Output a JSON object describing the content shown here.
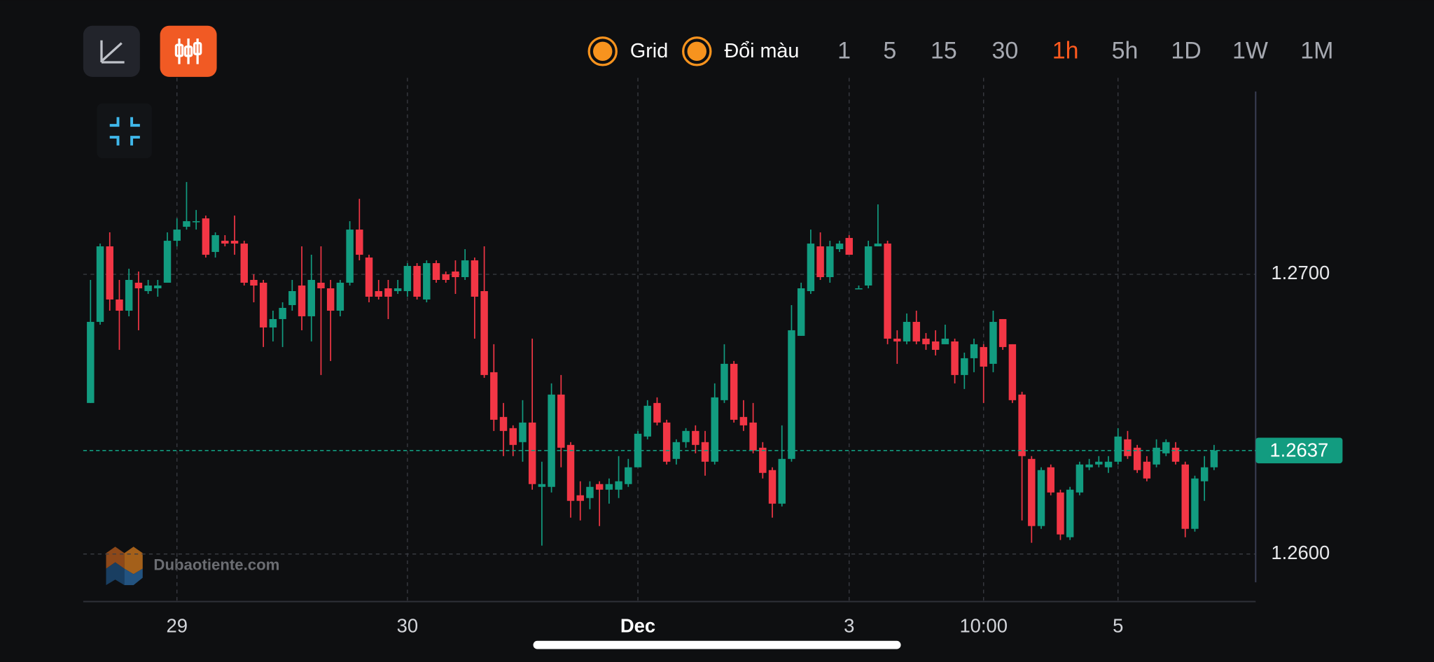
{
  "chart_data": {
    "type": "candlestick",
    "categories": [
      null,
      null,
      null,
      null,
      null,
      null,
      null,
      null,
      null,
      "29",
      null,
      null,
      null,
      null,
      null,
      null,
      null,
      null,
      null,
      null,
      null,
      null,
      null,
      null,
      null,
      null,
      null,
      null,
      null,
      null,
      null,
      null,
      null,
      "30",
      null,
      null,
      null,
      null,
      null,
      null,
      null,
      null,
      null,
      null,
      null,
      null,
      null,
      null,
      null,
      null,
      null,
      null,
      null,
      null,
      null,
      null,
      null,
      "Dec",
      null,
      null,
      null,
      null,
      null,
      null,
      null,
      null,
      null,
      null,
      null,
      null,
      null,
      null,
      null,
      null,
      null,
      null,
      null,
      null,
      null,
      "3",
      null,
      null,
      null,
      null,
      null,
      null,
      null,
      null,
      null,
      null,
      null,
      null,
      null,
      "10:00",
      null,
      null,
      null,
      null,
      null,
      null,
      null,
      null,
      null,
      null,
      null,
      null,
      null,
      "5",
      null,
      null,
      null,
      null,
      null,
      null,
      null,
      null,
      null,
      null
    ],
    "open": [
      1.2654,
      1.2683,
      1.271,
      1.2691,
      1.2687,
      1.2697,
      1.2694,
      1.2695,
      1.2697,
      1.2712,
      1.2717,
      1.2719,
      1.272,
      1.2708,
      1.2712,
      1.2712,
      1.2711,
      1.2698,
      1.2697,
      1.2681,
      1.2684,
      1.2689,
      1.2696,
      1.2685,
      1.2697,
      1.2695,
      1.2687,
      1.2697,
      1.2716,
      1.2706,
      1.2694,
      1.2695,
      1.2694,
      1.2694,
      1.2703,
      1.2691,
      1.2704,
      1.27,
      1.2701,
      1.2699,
      1.2705,
      1.2694,
      1.2665,
      1.2649,
      1.2645,
      1.264,
      1.2647,
      1.2624,
      1.2624,
      1.2657,
      1.2639,
      1.2621,
      1.262,
      1.2625,
      1.2623,
      1.2623,
      1.2625,
      1.2631,
      1.2642,
      1.2654,
      1.2647,
      1.2634,
      1.264,
      1.2644,
      1.264,
      1.2633,
      1.2655,
      1.2668,
      1.2649,
      1.2647,
      1.2638,
      1.263,
      1.2618,
      1.2634,
      1.2678,
      1.2694,
      1.271,
      1.2699,
      1.2709,
      1.2713,
      1.2695,
      1.2696,
      1.271,
      1.2711,
      1.2677,
      1.2676,
      1.2683,
      1.2677,
      1.2676,
      1.2675,
      1.2676,
      1.2664,
      1.267,
      1.2674,
      1.2668,
      1.2684,
      1.2675,
      1.2657,
      1.2634,
      1.261,
      1.2631,
      1.2622,
      1.2606,
      1.2622,
      1.2631,
      1.2632,
      1.2631,
      1.2633,
      1.2641,
      1.2638,
      1.2633,
      1.2632,
      1.2636,
      1.2638,
      1.2632,
      1.2609,
      1.2626,
      1.2631
    ],
    "high": [
      1.2698,
      1.2711,
      1.2715,
      1.2698,
      1.2702,
      1.2701,
      1.2698,
      1.2698,
      1.2715,
      1.272,
      1.2733,
      1.2723,
      1.2721,
      1.2715,
      1.2714,
      1.2721,
      1.2712,
      1.27,
      1.2698,
      1.2687,
      1.269,
      1.2698,
      1.271,
      1.2707,
      1.271,
      1.2698,
      1.2698,
      1.2719,
      1.2727,
      1.2707,
      1.2698,
      1.2698,
      1.2698,
      1.2704,
      1.2704,
      1.2705,
      1.2705,
      1.2701,
      1.2705,
      1.2709,
      1.2706,
      1.271,
      1.2675,
      1.2654,
      1.2646,
      1.2655,
      1.2677,
      1.2633,
      1.2661,
      1.2664,
      1.264,
      1.2626,
      1.2626,
      1.2626,
      1.2627,
      1.2635,
      1.2634,
      1.2644,
      1.2655,
      1.2656,
      1.2648,
      1.2641,
      1.2645,
      1.2646,
      1.2644,
      1.2661,
      1.2675,
      1.2669,
      1.2655,
      1.2654,
      1.264,
      1.2631,
      1.2646,
      1.2689,
      1.2697,
      1.2716,
      1.2715,
      1.2712,
      1.2712,
      1.2714,
      1.2696,
      1.2712,
      1.2725,
      1.2712,
      1.268,
      1.2686,
      1.2687,
      1.2679,
      1.268,
      1.2682,
      1.2677,
      1.2672,
      1.2677,
      1.2675,
      1.2687,
      1.2684,
      1.2675,
      1.2658,
      1.2635,
      1.2631,
      1.2632,
      1.2623,
      1.2624,
      1.2633,
      1.2634,
      1.2635,
      1.2635,
      1.2645,
      1.2644,
      1.2639,
      1.2635,
      1.2641,
      1.2641,
      1.264,
      1.2633,
      1.2628,
      1.2635,
      1.2639
    ],
    "low": [
      1.2654,
      1.2682,
      1.2687,
      1.2673,
      1.2685,
      1.268,
      1.2693,
      1.2692,
      1.2697,
      1.271,
      1.2716,
      1.2716,
      1.2706,
      1.2706,
      1.271,
      1.2707,
      1.2696,
      1.269,
      1.2674,
      1.2676,
      1.2674,
      1.2687,
      1.268,
      1.2676,
      1.2664,
      1.2669,
      1.2685,
      1.2696,
      1.2705,
      1.269,
      1.2691,
      1.2684,
      1.2693,
      1.2692,
      1.2691,
      1.269,
      1.2697,
      1.2697,
      1.2693,
      1.2698,
      1.2677,
      1.2663,
      1.2644,
      1.2635,
      1.2635,
      1.2633,
      1.2623,
      1.2603,
      1.2622,
      1.2631,
      1.2613,
      1.2612,
      1.2616,
      1.261,
      1.2618,
      1.262,
      1.2624,
      1.2631,
      1.2641,
      1.2646,
      1.2632,
      1.2632,
      1.2638,
      1.2636,
      1.2628,
      1.2632,
      1.2654,
      1.2647,
      1.2644,
      1.2636,
      1.2627,
      1.2613,
      1.2617,
      1.2633,
      1.2678,
      1.2693,
      1.2698,
      1.2697,
      1.2708,
      1.2707,
      1.2695,
      1.2695,
      1.271,
      1.2675,
      1.2668,
      1.2675,
      1.2675,
      1.2673,
      1.2671,
      1.2675,
      1.2661,
      1.2659,
      1.2665,
      1.2654,
      1.2665,
      1.2673,
      1.2654,
      1.2612,
      1.2604,
      1.2609,
      1.2621,
      1.2605,
      1.2605,
      1.2621,
      1.263,
      1.2631,
      1.2629,
      1.2632,
      1.2634,
      1.2629,
      1.2626,
      1.2631,
      1.2635,
      1.2632,
      1.2606,
      1.2608,
      1.2619,
      1.263
    ],
    "close": [
      1.2683,
      1.271,
      1.2691,
      1.2687,
      1.2698,
      1.2695,
      1.2696,
      1.2696,
      1.2712,
      1.2716,
      1.2719,
      1.2719,
      1.2707,
      1.2714,
      1.2711,
      1.2711,
      1.2697,
      1.2696,
      1.2681,
      1.2684,
      1.2688,
      1.2694,
      1.2685,
      1.2698,
      1.2695,
      1.2687,
      1.2697,
      1.2716,
      1.2707,
      1.2692,
      1.2692,
      1.2692,
      1.2695,
      1.2703,
      1.2692,
      1.2704,
      1.2698,
      1.2698,
      1.2699,
      1.2705,
      1.2692,
      1.2664,
      1.2648,
      1.2644,
      1.2639,
      1.2647,
      1.2625,
      1.2625,
      1.2657,
      1.2638,
      1.2619,
      1.2619,
      1.2624,
      1.2623,
      1.2625,
      1.2626,
      1.2631,
      1.2643,
      1.2653,
      1.2647,
      1.2633,
      1.264,
      1.2644,
      1.2639,
      1.2633,
      1.2656,
      1.2668,
      1.2648,
      1.2646,
      1.2637,
      1.2629,
      1.2618,
      1.2634,
      1.268,
      1.2695,
      1.2711,
      1.2699,
      1.271,
      1.2711,
      1.2707,
      1.2695,
      1.271,
      1.2711,
      1.2677,
      1.2676,
      1.2683,
      1.2676,
      1.2675,
      1.2673,
      1.2677,
      1.2664,
      1.267,
      1.2675,
      1.2667,
      1.2683,
      1.2674,
      1.2655,
      1.2635,
      1.261,
      1.263,
      1.2622,
      1.2607,
      1.2623,
      1.2632,
      1.2632,
      1.2633,
      1.2633,
      1.2642,
      1.2635,
      1.263,
      1.2627,
      1.2638,
      1.264,
      1.2633,
      1.2609,
      1.2627,
      1.2631,
      1.2637
    ],
    "up_color": "#129c80",
    "down_color": "#f23645",
    "ylim": [
      1.2583,
      1.277
    ],
    "yticks": [
      {
        "value": 1.26,
        "label": "1.2600"
      },
      {
        "value": 1.27,
        "label": "1.2700"
      }
    ],
    "grid": true,
    "price_line": {
      "value": 1.2637,
      "label": "1.2637",
      "color": "#129c80"
    }
  },
  "toolbar": {
    "options": [
      "Grid",
      "Đổi màu"
    ],
    "timeframes": [
      "1",
      "5",
      "15",
      "30",
      "1h",
      "5h",
      "1D",
      "1W",
      "1M"
    ],
    "active_timeframe": "1h"
  },
  "watermark": "Dubaotiente.com"
}
